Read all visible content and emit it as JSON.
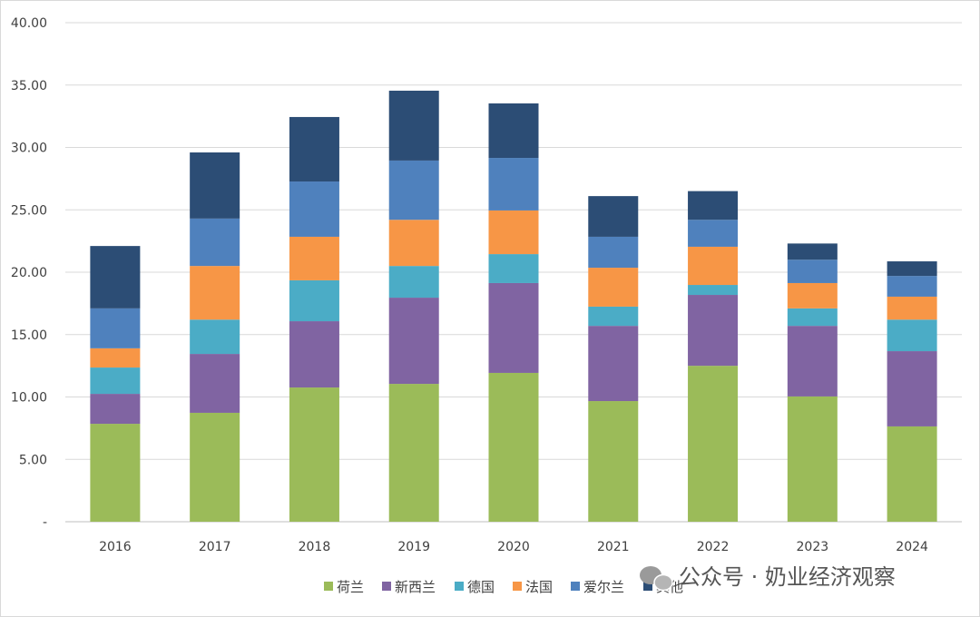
{
  "chart_data": {
    "type": "bar",
    "stacked": true,
    "title": "",
    "xlabel": "",
    "ylabel": "",
    "ylim": [
      0,
      40
    ],
    "yticks": [
      "-",
      "5.00",
      "10.00",
      "15.00",
      "20.00",
      "25.00",
      "30.00",
      "35.00",
      "40.00"
    ],
    "grid": true,
    "legend_position": "bottom",
    "categories": [
      "2016",
      "2017",
      "2018",
      "2019",
      "2020",
      "2021",
      "2022",
      "2023",
      "2024"
    ],
    "series": [
      {
        "name": "荷兰",
        "color": "#9bbb59",
        "values": [
          7.85,
          8.73,
          10.76,
          11.05,
          11.93,
          9.67,
          12.5,
          10.04,
          7.64
        ]
      },
      {
        "name": "新西兰",
        "color": "#8064a2",
        "values": [
          2.4,
          4.72,
          5.31,
          6.91,
          7.2,
          6.03,
          5.68,
          5.66,
          6.03
        ]
      },
      {
        "name": "德国",
        "color": "#4bacc6",
        "values": [
          2.11,
          2.75,
          3.28,
          2.54,
          2.32,
          1.54,
          0.8,
          1.4,
          2.53
        ]
      },
      {
        "name": "法国",
        "color": "#f79646",
        "values": [
          1.54,
          4.3,
          3.49,
          3.7,
          3.5,
          3.12,
          3.06,
          2.03,
          1.84
        ]
      },
      {
        "name": "爱尔兰",
        "color": "#4f81bd",
        "values": [
          3.2,
          3.8,
          4.43,
          4.75,
          4.21,
          2.48,
          2.16,
          1.87,
          1.66
        ]
      },
      {
        "name": "其他",
        "color": "#2c4d75",
        "values": [
          5.0,
          5.3,
          5.17,
          5.6,
          4.37,
          3.26,
          2.3,
          1.3,
          1.17
        ]
      }
    ]
  },
  "watermark": "公众号 · 奶业经济观察"
}
